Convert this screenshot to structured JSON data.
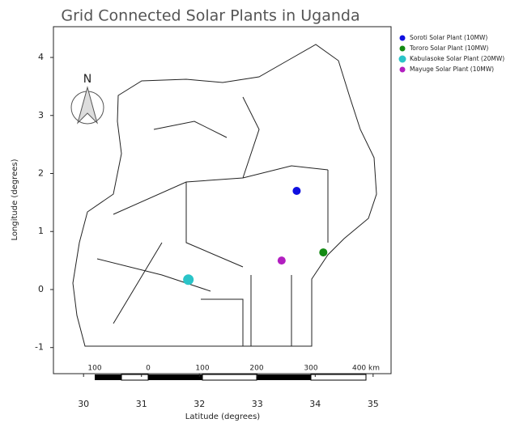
{
  "chart_data": {
    "type": "scatter",
    "title": "Grid Connected Solar Plants in Uganda",
    "x_label": "Latitude (degrees)",
    "y_label": "Longitude (degrees)",
    "north_label": "N",
    "scale_bar_labels": [
      "100",
      "0",
      "100",
      "200",
      "300",
      "400 km"
    ],
    "xlim": [
      29.48,
      35.31
    ],
    "ylim": [
      -1.45,
      4.53
    ],
    "xticks": [
      30,
      31,
      32,
      33,
      34,
      35
    ],
    "yticks": [
      -1,
      0,
      1,
      2,
      3,
      4
    ],
    "series": [
      {
        "name": "Soroti Solar Plant (10MW)",
        "color": "#1010e0",
        "x": [
          33.68
        ],
        "values": [
          1.7
        ]
      },
      {
        "name": "Tororo Solar Plant (10MW)",
        "color": "#138a13",
        "x": [
          34.14
        ],
        "values": [
          0.64
        ]
      },
      {
        "name": "Kabulasoke Solar Plant (20MW)",
        "color": "#2ac4c8",
        "x": [
          31.81
        ],
        "values": [
          0.17
        ]
      },
      {
        "name": "Mayuge Solar Plant (10MW)",
        "color": "#b21ec0",
        "x": [
          33.42
        ],
        "values": [
          0.5
        ]
      }
    ]
  }
}
